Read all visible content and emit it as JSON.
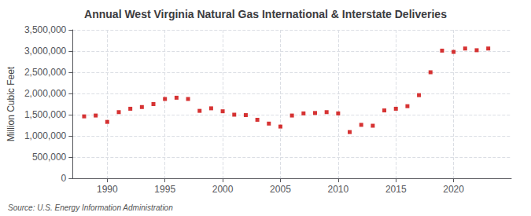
{
  "chart_data": {
    "type": "scatter",
    "title": "Annual West Virginia Natural Gas International & Interstate Deliveries",
    "ylabel": "Million Cubic Feet",
    "source": "Source: U.S. Energy Information Administration",
    "x": [
      1988,
      1989,
      1990,
      1991,
      1992,
      1993,
      1994,
      1995,
      1996,
      1997,
      1998,
      1999,
      2000,
      2001,
      2002,
      2003,
      2004,
      2005,
      2006,
      2007,
      2008,
      2009,
      2010,
      2011,
      2012,
      2013,
      2014,
      2015,
      2016,
      2017,
      2018,
      2019,
      2020,
      2021,
      2022,
      2023
    ],
    "values": [
      1460000,
      1480000,
      1330000,
      1560000,
      1640000,
      1680000,
      1750000,
      1870000,
      1900000,
      1870000,
      1590000,
      1650000,
      1580000,
      1500000,
      1490000,
      1380000,
      1290000,
      1220000,
      1480000,
      1530000,
      1540000,
      1560000,
      1530000,
      1090000,
      1260000,
      1240000,
      1600000,
      1640000,
      1700000,
      1960000,
      2500000,
      3010000,
      2980000,
      3060000,
      3020000,
      3060000
    ],
    "color": "#cc0000",
    "marker": "square",
    "xlim": [
      1987,
      2025
    ],
    "ylim": [
      0,
      3500000
    ],
    "xticks": [
      1990,
      1995,
      2000,
      2005,
      2010,
      2015,
      2020
    ],
    "yticks": [
      0,
      {
        "value": 500000,
        "label": "500,000"
      },
      {
        "value": 1000000,
        "label": "1,000,000"
      },
      {
        "value": 1500000,
        "label": "1,500,000"
      },
      {
        "value": 2000000,
        "label": "2,000,000"
      },
      {
        "value": 2500000,
        "label": "2,500,000"
      },
      {
        "value": 3000000,
        "label": "3,000,000"
      },
      {
        "value": 3500000,
        "label": "3,500,000"
      }
    ],
    "grid": true
  }
}
